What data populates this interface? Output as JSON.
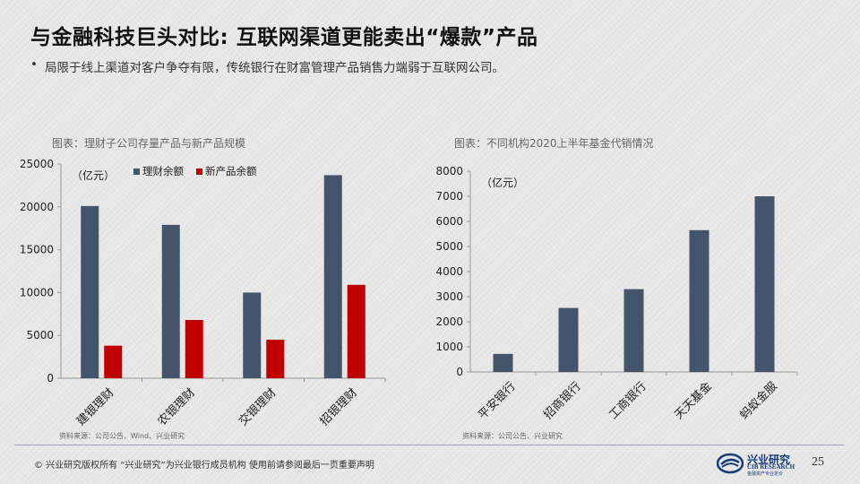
{
  "title": "与金融科技巨头对比: 互联网渠道更能卖出“爆款”产品",
  "bullet": "局限于线上渠道对客户争夺有限，传统银行在财富管理产品销售力端弱于互联网公司。",
  "bullet_marker": "•",
  "chart1_caption": "图表：理财子公司存量产品与新产品规模",
  "chart2_caption": "图表：不同机构2020上半年基金代销情况",
  "source1": "资料来源：公司公告、Wind、兴业研究",
  "source2": "资料来源：公司公告、兴业研究",
  "footer": {
    "copyright": "©  兴业研究版权所有    “兴业研究”为兴业银行成员机构   使用前请参阅最后一页重要声明",
    "logo_cn": "兴业研究",
    "logo_en": "CIB RESEARCH",
    "logo_sub": "金融资产专业定价",
    "page": "25"
  },
  "colors": {
    "navy": "#44546a",
    "red": "#c00000",
    "logo_blue": "#173b78"
  },
  "chart_data": [
    {
      "type": "bar",
      "title": "图表：理财子公司存量产品与新产品规模",
      "unit_label": "（亿元）",
      "categories": [
        "建银理财",
        "农银理财",
        "交银理财",
        "招银理财"
      ],
      "series": [
        {
          "name": "理财余额",
          "color": "#44546a",
          "values": [
            20100,
            17900,
            10000,
            23700
          ]
        },
        {
          "name": "新产品余额",
          "color": "#c00000",
          "values": [
            3800,
            6800,
            4500,
            10900
          ]
        }
      ],
      "ylim": [
        0,
        25000
      ],
      "yticks": [
        0,
        5000,
        10000,
        15000,
        20000,
        25000
      ],
      "legend_position": "top",
      "grid": false
    },
    {
      "type": "bar",
      "title": "图表：不同机构2020上半年基金代销情况",
      "unit_label": "（亿元）",
      "categories": [
        "平安银行",
        "招商银行",
        "工商银行",
        "天天基金",
        "蚂蚁金服"
      ],
      "series": [
        {
          "color": "#44546a",
          "values": [
            720,
            2550,
            3300,
            5650,
            7000
          ]
        }
      ],
      "ylim": [
        0,
        8000
      ],
      "yticks": [
        0,
        1000,
        2000,
        3000,
        4000,
        5000,
        6000,
        7000,
        8000
      ],
      "grid": false
    }
  ]
}
